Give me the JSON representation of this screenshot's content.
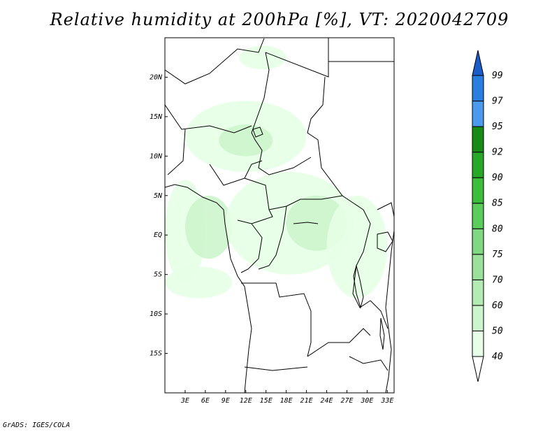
{
  "title": "Relative humidity at 200hPa [%], VT: 2020042709",
  "footer": "GrADS: IGES/COLA",
  "chart_data": {
    "type": "heatmap",
    "variable": "Relative humidity at 200hPa",
    "unit": "%",
    "valid_time": "2020042709",
    "x_axis": {
      "range": [
        0,
        34
      ],
      "ticks": [
        {
          "value": 3,
          "label": "3E"
        },
        {
          "value": 6,
          "label": "6E"
        },
        {
          "value": 9,
          "label": "9E"
        },
        {
          "value": 12,
          "label": "12E"
        },
        {
          "value": 15,
          "label": "15E"
        },
        {
          "value": 18,
          "label": "18E"
        },
        {
          "value": 21,
          "label": "21E"
        },
        {
          "value": 24,
          "label": "24E"
        },
        {
          "value": 27,
          "label": "27E"
        },
        {
          "value": 30,
          "label": "30E"
        },
        {
          "value": 33,
          "label": "33E"
        }
      ]
    },
    "y_axis": {
      "range": [
        -20,
        25
      ],
      "ticks": [
        {
          "value": 20,
          "label": "20N"
        },
        {
          "value": 15,
          "label": "15N"
        },
        {
          "value": 10,
          "label": "10N"
        },
        {
          "value": 5,
          "label": "5N"
        },
        {
          "value": 0,
          "label": "EQ"
        },
        {
          "value": -5,
          "label": "5S"
        },
        {
          "value": -10,
          "label": "10S"
        },
        {
          "value": -15,
          "label": "15S"
        }
      ]
    },
    "colorbar": {
      "levels": [
        "40",
        "50",
        "60",
        "70",
        "75",
        "80",
        "85",
        "90",
        "92",
        "95",
        "97",
        "99"
      ],
      "colors": [
        "#e6ffe6",
        "#cdf5cd",
        "#b4ebb4",
        "#9be19b",
        "#82d782",
        "#5acd5a",
        "#3cbe3c",
        "#28a828",
        "#168c16",
        "#4a9af0",
        "#2a7ee0",
        "#1a5cc8"
      ],
      "arrow_low_color": "#ffffff",
      "arrow_high_color": "#1a5cc8"
    },
    "regions": [
      {
        "level": "40-50",
        "lon": [
          0,
          6
        ],
        "lat": [
          -6,
          7
        ]
      },
      {
        "level": "50-60",
        "lon": [
          3,
          10
        ],
        "lat": [
          -3,
          5
        ]
      },
      {
        "level": "40-50",
        "lon": [
          3,
          21
        ],
        "lat": [
          8,
          17
        ]
      },
      {
        "level": "50-60",
        "lon": [
          8,
          16
        ],
        "lat": [
          10,
          14
        ]
      },
      {
        "level": "40-50",
        "lon": [
          9,
          28
        ],
        "lat": [
          -5,
          8
        ]
      },
      {
        "level": "50-60",
        "lon": [
          18,
          27
        ],
        "lat": [
          -2,
          5
        ]
      },
      {
        "level": "40-50",
        "lon": [
          24,
          33
        ],
        "lat": [
          -8,
          5
        ]
      },
      {
        "level": "40-50",
        "lon": [
          11,
          18
        ],
        "lat": [
          21,
          24
        ]
      },
      {
        "level": "40-50",
        "lon": [
          0,
          10
        ],
        "lat": [
          -8,
          -4
        ]
      }
    ]
  }
}
